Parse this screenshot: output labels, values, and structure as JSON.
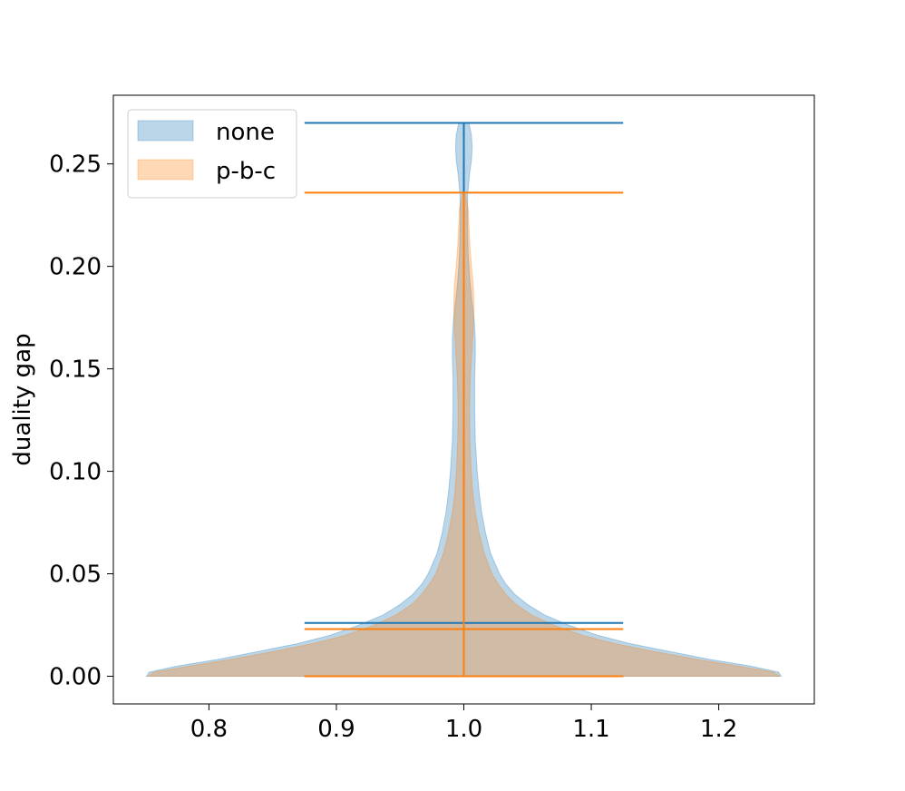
{
  "chart_data": {
    "type": "violin",
    "ylabel": "duality gap",
    "xlim": [
      0.725,
      1.275
    ],
    "ylim": [
      -0.0135,
      0.2835
    ],
    "x_ticks": [
      0.8,
      0.9,
      1.0,
      1.1,
      1.2
    ],
    "x_tick_labels": [
      "0.8",
      "0.9",
      "1.0",
      "1.1",
      "1.2"
    ],
    "y_ticks": [
      0.0,
      0.05,
      0.1,
      0.15,
      0.2,
      0.25
    ],
    "y_tick_labels": [
      "0.00",
      "0.05",
      "0.10",
      "0.15",
      "0.20",
      "0.25"
    ],
    "legend_position": "upper-left",
    "position": 1.0,
    "series": [
      {
        "name": "none",
        "fill_color": "#1f77b4",
        "line_color": "#1f77b4",
        "min": 0.0,
        "max": 0.27,
        "mean": 0.026,
        "density": [
          [
            0.0,
            0.249
          ],
          [
            0.002,
            0.247
          ],
          [
            0.005,
            0.225
          ],
          [
            0.008,
            0.195
          ],
          [
            0.012,
            0.162
          ],
          [
            0.016,
            0.13
          ],
          [
            0.02,
            0.105
          ],
          [
            0.025,
            0.082
          ],
          [
            0.03,
            0.063
          ],
          [
            0.035,
            0.05
          ],
          [
            0.04,
            0.04
          ],
          [
            0.045,
            0.033
          ],
          [
            0.05,
            0.028
          ],
          [
            0.06,
            0.021
          ],
          [
            0.07,
            0.017
          ],
          [
            0.08,
            0.014
          ],
          [
            0.09,
            0.012
          ],
          [
            0.1,
            0.0105
          ],
          [
            0.115,
            0.009
          ],
          [
            0.13,
            0.0085
          ],
          [
            0.145,
            0.0085
          ],
          [
            0.155,
            0.009
          ],
          [
            0.165,
            0.009
          ],
          [
            0.175,
            0.008
          ],
          [
            0.185,
            0.006
          ],
          [
            0.195,
            0.0045
          ],
          [
            0.205,
            0.0035
          ],
          [
            0.215,
            0.003
          ],
          [
            0.225,
            0.0028
          ],
          [
            0.235,
            0.003
          ],
          [
            0.245,
            0.0045
          ],
          [
            0.252,
            0.006
          ],
          [
            0.258,
            0.0065
          ],
          [
            0.264,
            0.006
          ],
          [
            0.27,
            0.004
          ]
        ]
      },
      {
        "name": "p-b-c",
        "fill_color": "#ff7f0e",
        "line_color": "#ff7f0e",
        "min": 0.0,
        "max": 0.236,
        "mean": 0.023,
        "density": [
          [
            0.0,
            0.248
          ],
          [
            0.002,
            0.243
          ],
          [
            0.005,
            0.215
          ],
          [
            0.008,
            0.185
          ],
          [
            0.012,
            0.15
          ],
          [
            0.016,
            0.118
          ],
          [
            0.02,
            0.093
          ],
          [
            0.025,
            0.07
          ],
          [
            0.03,
            0.053
          ],
          [
            0.035,
            0.041
          ],
          [
            0.04,
            0.033
          ],
          [
            0.045,
            0.027
          ],
          [
            0.05,
            0.022
          ],
          [
            0.06,
            0.016
          ],
          [
            0.07,
            0.012
          ],
          [
            0.08,
            0.009
          ],
          [
            0.09,
            0.007
          ],
          [
            0.1,
            0.0058
          ],
          [
            0.115,
            0.0048
          ],
          [
            0.13,
            0.0045
          ],
          [
            0.145,
            0.005
          ],
          [
            0.16,
            0.0065
          ],
          [
            0.17,
            0.0075
          ],
          [
            0.18,
            0.008
          ],
          [
            0.19,
            0.0075
          ],
          [
            0.2,
            0.006
          ],
          [
            0.21,
            0.0048
          ],
          [
            0.22,
            0.004
          ],
          [
            0.228,
            0.0035
          ],
          [
            0.236,
            0.001
          ]
        ]
      }
    ]
  }
}
